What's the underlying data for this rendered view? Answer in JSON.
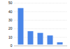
{
  "chart_data": {
    "type": "bar",
    "categories": [
      null,
      null,
      null,
      null,
      null
    ],
    "values": [
      45,
      18,
      16,
      13,
      5
    ],
    "color": "#4a86e8",
    "ylim": [
      0,
      50
    ],
    "yticks": [
      0,
      10,
      20,
      30,
      40,
      50
    ],
    "grid": true,
    "tick_labels": "y"
  }
}
